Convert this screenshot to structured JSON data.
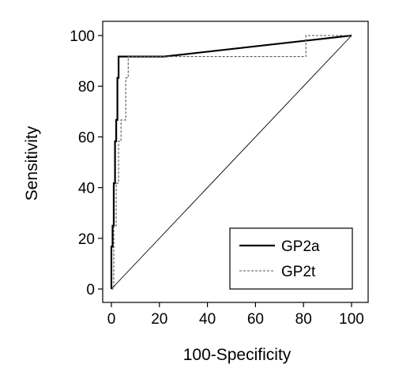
{
  "chart_data": {
    "type": "line",
    "xlabel": "100-Specificity",
    "ylabel": "Sensitivity",
    "xlim": [
      0,
      100
    ],
    "ylim": [
      0,
      100
    ],
    "xticks": [
      "0",
      "20",
      "40",
      "60",
      "80",
      "100"
    ],
    "yticks": [
      "0",
      "20",
      "40",
      "60",
      "80",
      "100"
    ],
    "grid": false,
    "legend_position": "bottom-right",
    "series": [
      {
        "name": "GP2a",
        "style": "solid",
        "color": "#000000",
        "x": [
          0,
          0,
          0.5,
          0.5,
          1,
          1,
          1.5,
          1.5,
          2,
          2,
          2.5,
          2.5,
          3,
          3,
          22,
          100
        ],
        "y": [
          0,
          16.7,
          16.7,
          25,
          25,
          41.7,
          41.7,
          58.3,
          58.3,
          66.7,
          66.7,
          83.3,
          83.3,
          91.7,
          91.7,
          100
        ]
      },
      {
        "name": "GP2t",
        "style": "dashed",
        "color": "#555555",
        "x": [
          0,
          1,
          1,
          2,
          2,
          3,
          3,
          4,
          4,
          6,
          6,
          7,
          7,
          80,
          81,
          81,
          100
        ],
        "y": [
          0,
          0,
          25,
          25,
          41.7,
          41.7,
          58.3,
          58.3,
          66.7,
          66.7,
          83.3,
          83.3,
          91.7,
          91.7,
          91.7,
          100,
          100
        ]
      },
      {
        "name": "",
        "style": "dotted",
        "color": "#000000",
        "x": [
          0,
          100
        ],
        "y": [
          0,
          100
        ]
      }
    ]
  }
}
